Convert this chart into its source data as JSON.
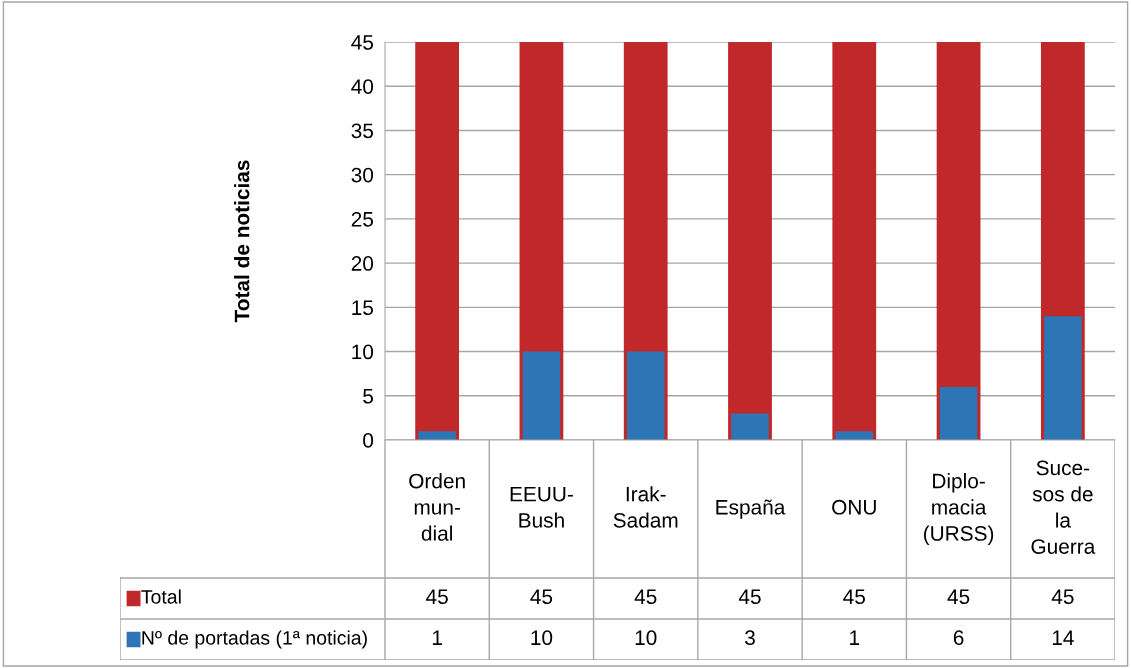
{
  "chart_data": {
    "type": "bar",
    "ylabel": "Total de noticias",
    "categories": [
      "Orden\nmun-\ndial",
      "EEUU-\nBush",
      "Irak-\nSadam",
      "España",
      "ONU",
      "Diplo-\nmacia\n(URSS)",
      "Suce-\nsos de\nla\nGuerra"
    ],
    "series": [
      {
        "name": "Total",
        "color": "#c0282a",
        "values": [
          45,
          45,
          45,
          45,
          45,
          45,
          45
        ]
      },
      {
        "name": "Nº de portadas (1ª noticia)",
        "color": "#2e75b6",
        "values": [
          1,
          10,
          10,
          3,
          1,
          6,
          14
        ]
      }
    ],
    "ylim": [
      0,
      45
    ],
    "yticks": [
      0,
      5,
      10,
      15,
      20,
      25,
      30,
      35,
      40,
      45
    ],
    "grid": "y",
    "legend": "bottom",
    "data_labels": true
  }
}
